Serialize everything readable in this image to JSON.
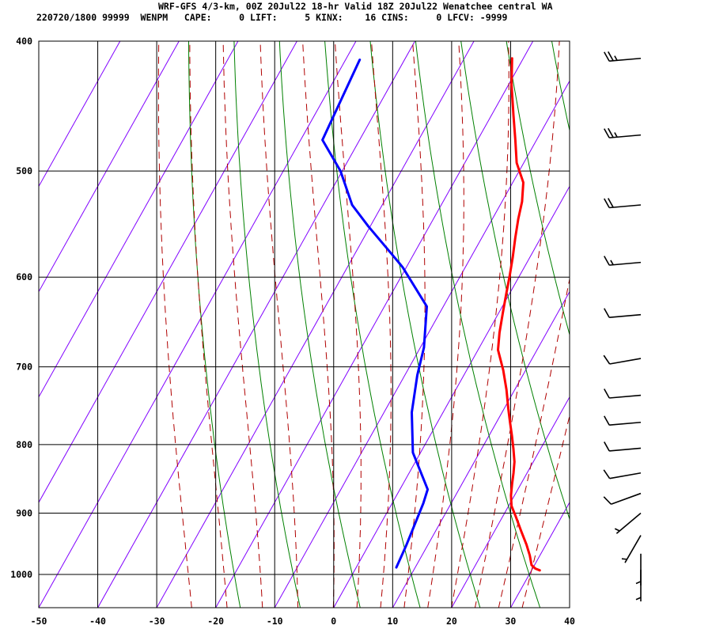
{
  "header": {
    "line1": "WRF-GFS 4/3-km, 00Z 20Jul22 18-hr Valid 18Z 20Jul22 Wenatchee central WA",
    "line2": "220720/1800 99999  WENPM   CAPE:     0 LIFT:     5 KINX:    16 CINS:     0 LFCV: -9999"
  },
  "chart_data": {
    "type": "line",
    "xlim": [
      -50,
      40
    ],
    "ylim": [
      1040,
      400
    ],
    "x_ticks": [
      "-50",
      "-40",
      "-30",
      "-20",
      "-10",
      "0",
      "10",
      "20",
      "30",
      "40"
    ],
    "y_ticks": [
      "400",
      "500",
      "600",
      "700",
      "800",
      "900",
      "1000"
    ],
    "grid": true,
    "colors": {
      "temperature": "#ff0000",
      "dewpoint": "#0000ff",
      "isotherm": "#8000ff",
      "dry_adiabat": "#008000",
      "moist_adiabat": "#b00000",
      "grid": "#000000",
      "wind_barb": "#000000"
    },
    "series": [
      {
        "key": "temperature",
        "points": [
          [
            -21.9,
            412
          ],
          [
            -19.5,
            431
          ],
          [
            -16.3,
            454
          ],
          [
            -13.6,
            474
          ],
          [
            -11.2,
            493
          ],
          [
            -8.2,
            510
          ],
          [
            -6.6,
            527
          ],
          [
            -5.6,
            543
          ],
          [
            -4.3,
            561
          ],
          [
            -2.9,
            580
          ],
          [
            -1.7,
            598
          ],
          [
            -0.5,
            618
          ],
          [
            0.7,
            638
          ],
          [
            2.0,
            660
          ],
          [
            3.4,
            680
          ],
          [
            6.2,
            704
          ],
          [
            8.6,
            728
          ],
          [
            10.7,
            752
          ],
          [
            12.3,
            770
          ],
          [
            13.9,
            788
          ],
          [
            15.4,
            806
          ],
          [
            16.8,
            824
          ],
          [
            17.7,
            840
          ],
          [
            18.5,
            856
          ],
          [
            19.4,
            873
          ],
          [
            20.5,
            889
          ],
          [
            22.2,
            905
          ],
          [
            24.5,
            928
          ],
          [
            26.7,
            950
          ],
          [
            28.3,
            968
          ],
          [
            29.5,
            984
          ],
          [
            30.5,
            990
          ],
          [
            31.4,
            993
          ]
        ]
      },
      {
        "key": "dewpoint",
        "points": [
          [
            -47.6,
            413
          ],
          [
            -46.3,
            474
          ],
          [
            -40.3,
            500
          ],
          [
            -35.1,
            530
          ],
          [
            -30.3,
            550
          ],
          [
            -23.4,
            578
          ],
          [
            -20.6,
            590
          ],
          [
            -12.8,
            631
          ],
          [
            -9.4,
            677
          ],
          [
            -7.9,
            710
          ],
          [
            -5.3,
            757
          ],
          [
            -1.3,
            811
          ],
          [
            4.7,
            864
          ],
          [
            5.3,
            885
          ],
          [
            6.4,
            952
          ],
          [
            6.8,
            988
          ]
        ]
      }
    ],
    "isotherms": [
      -90,
      -80,
      -70,
      -60,
      -50,
      -40,
      -30,
      -20,
      -10,
      0,
      10,
      20,
      30,
      40
    ],
    "dry_adiabats_theta_C": [
      -20,
      -10,
      0,
      10,
      20,
      30,
      40,
      50,
      60,
      70,
      80,
      90,
      100,
      110,
      120,
      130,
      140,
      150
    ],
    "moist_adiabats_C": [
      -24,
      -18,
      -12,
      -6,
      0,
      4,
      8,
      12,
      16,
      20,
      24,
      28,
      32
    ],
    "wind_barbs": [
      {
        "p": 412,
        "dir": 265,
        "kt": 25
      },
      {
        "p": 470,
        "dir": 265,
        "kt": 25
      },
      {
        "p": 530,
        "dir": 265,
        "kt": 20
      },
      {
        "p": 585,
        "dir": 265,
        "kt": 15
      },
      {
        "p": 640,
        "dir": 265,
        "kt": 10
      },
      {
        "p": 690,
        "dir": 260,
        "kt": 10
      },
      {
        "p": 735,
        "dir": 265,
        "kt": 10
      },
      {
        "p": 770,
        "dir": 265,
        "kt": 10
      },
      {
        "p": 805,
        "dir": 265,
        "kt": 10
      },
      {
        "p": 840,
        "dir": 260,
        "kt": 10
      },
      {
        "p": 870,
        "dir": 250,
        "kt": 10
      },
      {
        "p": 900,
        "dir": 230,
        "kt": 5
      },
      {
        "p": 935,
        "dir": 210,
        "kt": 5
      },
      {
        "p": 965,
        "dir": 180,
        "kt": 5
      },
      {
        "p": 992,
        "dir": 180,
        "kt": 5
      }
    ]
  }
}
